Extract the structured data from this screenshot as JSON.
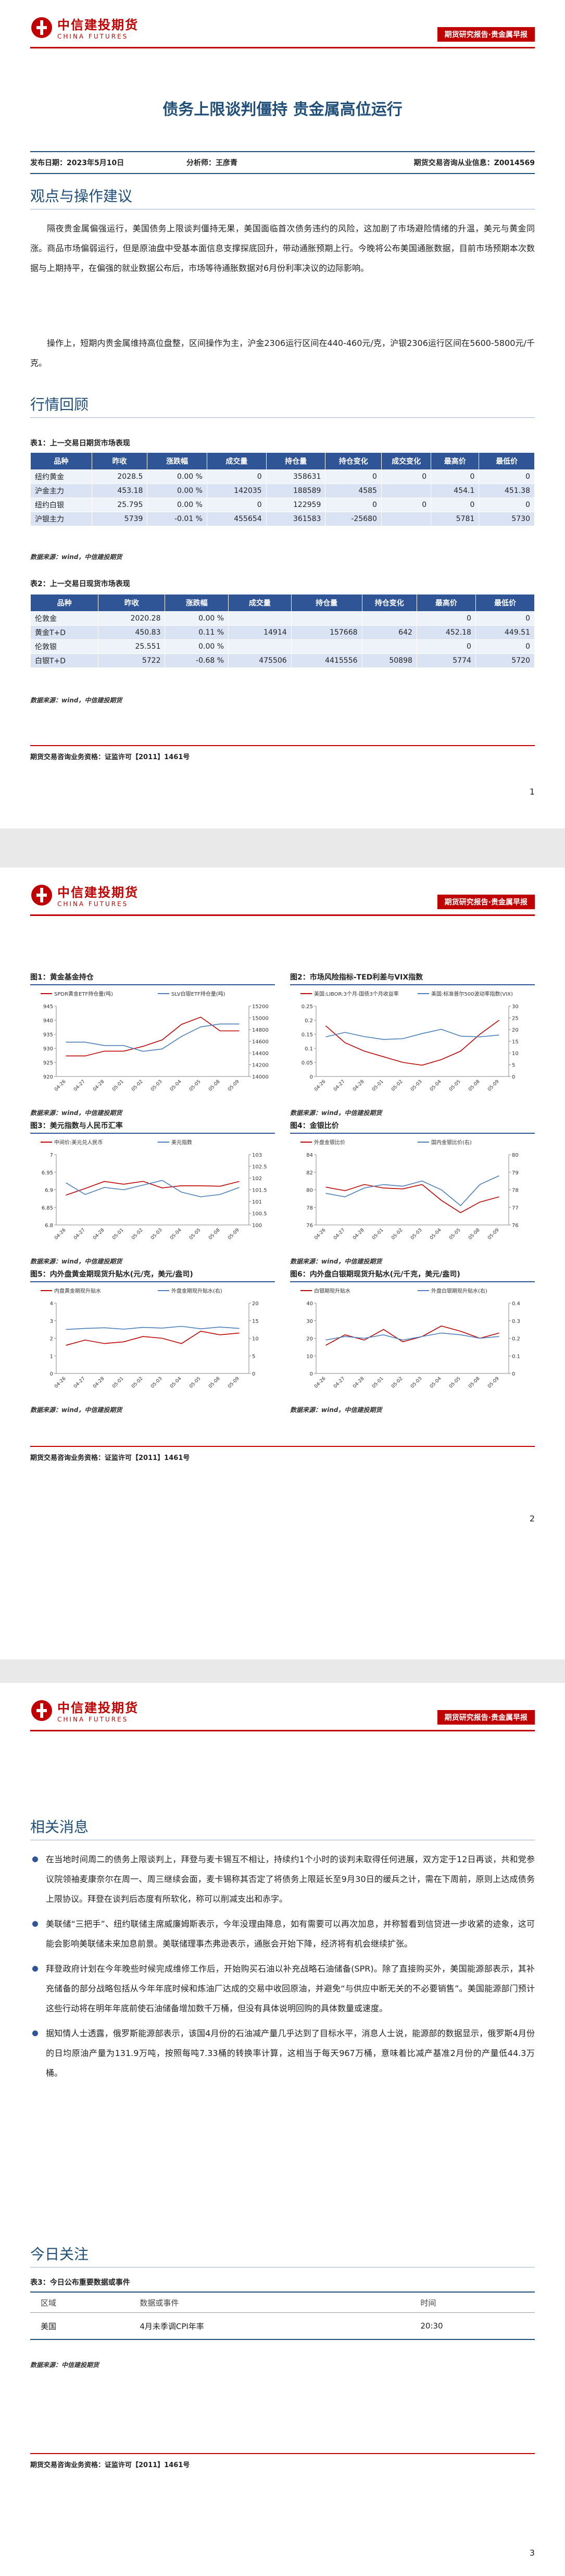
{
  "header": {
    "company": "中信建投期货",
    "company_en": "CHINA FUTURES",
    "report_type": "期货研究报告·贵金属早报"
  },
  "footer": {
    "license": "期货交易咨询业务资格：证监许可【2011】1461号"
  },
  "page_numbers": [
    "1",
    "2",
    "3"
  ],
  "title": "债务上限谈判僵持 贵金属高位运行",
  "info": {
    "date": "发布日期：2023年5月10日",
    "analyst": "分析师：王彦青",
    "license": "期货交易咨询从业信息：Z0014569"
  },
  "views": {
    "heading": "观点与操作建议",
    "paragraphs": [
      "隔夜贵金属偏强运行，美国债务上限谈判僵持无果，美国面临首次债务违约的风险，这加剧了市场避险情绪的升温，美元与黄金同涨。商品市场偏弱运行，但是原油盘中受基本面信息支撑探底回升，带动通胀预期上行。今晚将公布美国通胀数据，目前市场预期本次数据与上期持平，在偏强的就业数据公布后，市场等待通胀数据对6月份利率决议的边际影响。",
      "操作上，短期内贵金属维持高位盘整，区间操作为主，沪金2306运行区间在440-460元/克，沪银2306运行区间在5600-5800元/千克。"
    ]
  },
  "review": {
    "heading": "行情回顾",
    "source": "数据来源：wind，中信建投期货",
    "tables": [
      {
        "caption": "表1：上一交易日期货市场表现",
        "columns": [
          "品种",
          "昨收",
          "涨跌幅",
          "成交量",
          "持仓量",
          "持仓变化",
          "成交变化",
          "最高价",
          "最低价"
        ],
        "rows": [
          [
            "纽约黄金",
            "2028.5",
            "0.00 %",
            "0",
            "358631",
            "0",
            "0",
            "0",
            "0"
          ],
          [
            "沪金主力",
            "453.18",
            "0.00 %",
            "142035",
            "188589",
            "4585",
            null,
            "454.1",
            "451.38"
          ],
          [
            "纽约白银",
            "25.795",
            "0.00 %",
            "0",
            "122959",
            "0",
            "0",
            "0",
            "0"
          ],
          [
            "沪银主力",
            "5739",
            "-0.01 %",
            "455654",
            "361583",
            "-25680",
            null,
            "5781",
            "5730"
          ]
        ]
      },
      {
        "caption": "表2：上一交易日现货市场表现",
        "columns": [
          "品种",
          "昨收",
          "涨跌幅",
          "成交量",
          "持仓量",
          "持仓变化",
          "最高价",
          "最低价"
        ],
        "rows": [
          [
            "伦敦金",
            "2020.28",
            "0.00 %",
            null,
            null,
            null,
            "0",
            "0"
          ],
          [
            "黄金T+D",
            "450.83",
            "0.11 %",
            "14914",
            "157668",
            "642",
            "452.18",
            "449.51"
          ],
          [
            "伦敦银",
            "25.551",
            "0.00 %",
            null,
            null,
            null,
            "0",
            "0"
          ],
          [
            "白银T+D",
            "5722",
            "-0.68 %",
            "475506",
            "4415556",
            "50898",
            "5774",
            "5720"
          ]
        ]
      }
    ]
  },
  "chart_source": "数据来源：wind，中信建投期货",
  "chart_data": [
    {
      "type": "line",
      "title": "图1：黄金基金持仓",
      "categories": [
        "04-26",
        "04-27",
        "04-28",
        "05-01",
        "05-02",
        "05-03",
        "05-04",
        "05-05",
        "05-08",
        "05-09"
      ],
      "ylim": [
        920,
        945
      ],
      "yticks": [
        920,
        925,
        930,
        935,
        940,
        945
      ],
      "y2lim": [
        14000,
        15200
      ],
      "y2ticks": [
        14000,
        14200,
        14400,
        14600,
        14800,
        15000,
        15200
      ],
      "series": [
        {
          "name": "SPDR黄金ETF持仓量(吨)",
          "color": "#c00000",
          "values": [
            927.3,
            927.3,
            929.0,
            929.0,
            930.7,
            933.0,
            938.5,
            941.1,
            936.2,
            936.2
          ]
        },
        {
          "name": "SLV白银ETF持仓量(吨)",
          "color": "#4a7ebb",
          "axis": "y2",
          "values": [
            14585,
            14585,
            14527,
            14527,
            14428,
            14469,
            14683,
            14846,
            14895,
            14895
          ]
        }
      ]
    },
    {
      "type": "line",
      "title": "图2：市场风险指标-TED利差与VIX指数",
      "categories": [
        "04-26",
        "04-27",
        "04-28",
        "05-01",
        "05-02",
        "05-03",
        "05-04",
        "05-05",
        "05-08",
        "05-09"
      ],
      "ylim": [
        0,
        0.25
      ],
      "yticks": [
        0,
        0.05,
        0.1,
        0.15,
        0.2,
        0.25
      ],
      "y2lim": [
        0,
        30
      ],
      "y2ticks": [
        0,
        5,
        10,
        15,
        20,
        25,
        30
      ],
      "series": [
        {
          "name": "美国:LIBOR:3个月-国债3个月收益率",
          "color": "#c00000",
          "values": [
            0.18,
            0.12,
            0.09,
            0.07,
            0.05,
            0.04,
            0.06,
            0.09,
            0.15,
            0.2
          ]
        },
        {
          "name": "美国:标准普尔500波动率指数(VIX)",
          "color": "#4a7ebb",
          "axis": "y2",
          "values": [
            16.9,
            18.8,
            17,
            15.8,
            16.1,
            18.3,
            20.1,
            17.2,
            16.9,
            17.7
          ]
        }
      ]
    },
    {
      "type": "line",
      "title": "图3：美元指数与人民币汇率",
      "categories": [
        "04-26",
        "04-27",
        "04-28",
        "05-01",
        "05-02",
        "05-03",
        "05-04",
        "05-05",
        "05-08",
        "05-09"
      ],
      "ylim": [
        6.8,
        7
      ],
      "yticks": [
        6.8,
        6.85,
        6.9,
        6.95,
        7
      ],
      "y2lim": [
        100,
        103
      ],
      "y2ticks": [
        100,
        100.5,
        101,
        101.5,
        102,
        102.5,
        103
      ],
      "series": [
        {
          "name": "中间价:美元兑人民币",
          "color": "#c00000",
          "values": [
            6.8847,
            6.9037,
            6.9237,
            6.9158,
            6.924,
            6.9054,
            6.9115,
            6.9114,
            6.9101,
            6.9237
          ]
        },
        {
          "name": "美元指数",
          "color": "#4a7ebb",
          "axis": "y2",
          "values": [
            101.8,
            101.3,
            101.6,
            101.5,
            101.7,
            101.9,
            101.4,
            101.2,
            101.3,
            101.6
          ]
        }
      ]
    },
    {
      "type": "line",
      "title": "图4：金银比价",
      "categories": [
        "04-26",
        "04-27",
        "04-28",
        "05-01",
        "05-02",
        "05-03",
        "05-04",
        "05-05",
        "05-08",
        "05-09"
      ],
      "ylim": [
        76,
        84
      ],
      "yticks": [
        76,
        78,
        80,
        82,
        84
      ],
      "y2lim": [
        76,
        80
      ],
      "y2ticks": [
        76,
        77,
        78,
        79,
        80
      ],
      "series": [
        {
          "name": "外盘金银比价",
          "color": "#c00000",
          "values": [
            80.3,
            79.9,
            80.6,
            80.2,
            80.1,
            80.6,
            78.8,
            77.4,
            78.6,
            79.2
          ]
        },
        {
          "name": "国内金银比价(右)",
          "color": "#4a7ebb",
          "axis": "y2",
          "values": [
            77.8,
            77.6,
            78.1,
            78.3,
            78.2,
            78.5,
            78,
            77.1,
            78.3,
            78.8
          ]
        }
      ]
    },
    {
      "type": "line",
      "title": "图5：内外盘黄金期现货升贴水(元/克，美元/盎司)",
      "categories": [
        "04-26",
        "04-27",
        "04-28",
        "05-01",
        "05-02",
        "05-03",
        "05-04",
        "05-05",
        "05-08",
        "05-09"
      ],
      "ylim": [
        0,
        4
      ],
      "yticks": [
        0,
        1,
        2,
        3,
        4
      ],
      "y2lim": [
        0,
        20
      ],
      "y2ticks": [
        0,
        5,
        10,
        15,
        20
      ],
      "series": [
        {
          "name": "内盘黄金期现升贴水",
          "color": "#c00000",
          "values": [
            1.6,
            1.9,
            1.7,
            1.8,
            2.1,
            2,
            1.7,
            2.4,
            2.2,
            2.3
          ]
        },
        {
          "name": "外盘金期现升贴水(右)",
          "color": "#4a7ebb",
          "axis": "y2",
          "values": [
            12.5,
            12.8,
            13,
            12.6,
            13.1,
            12.9,
            13.4,
            12.7,
            13.2,
            12.8
          ]
        }
      ]
    },
    {
      "type": "line",
      "title": "图6：内外盘白银期现货升贴水(元/千克，美元/盎司)",
      "categories": [
        "04-26",
        "04-27",
        "04-28",
        "05-01",
        "05-02",
        "05-03",
        "05-04",
        "05-05",
        "05-08",
        "05-09"
      ],
      "ylim": [
        0,
        40
      ],
      "yticks": [
        0,
        10,
        20,
        30,
        40
      ],
      "y2lim": [
        0,
        0.4
      ],
      "y2ticks": [
        0,
        0.1,
        0.2,
        0.3,
        0.4
      ],
      "series": [
        {
          "name": "白银期现升贴水",
          "color": "#c00000",
          "values": [
            16,
            22,
            19,
            25,
            18,
            21,
            27,
            24,
            20,
            23
          ]
        },
        {
          "name": "外盘白银期现升贴水(右)",
          "color": "#4a7ebb",
          "axis": "y2",
          "values": [
            0.19,
            0.21,
            0.2,
            0.22,
            0.19,
            0.21,
            0.23,
            0.22,
            0.2,
            0.21
          ]
        }
      ]
    }
  ],
  "news": {
    "heading": "相关消息",
    "items": [
      "在当地时间周二的债务上限谈判上，拜登与麦卡锡互不相让，持续约1个小时的谈判未取得任何进展，双方定于12日再谈，共和党参议院领袖麦康奈尔在周一、周三继续会面，麦卡锡称其否定了将债务上限延长至9月30日的缓兵之计，需在下周前，原则上达成债务上限协议。拜登在谈判后态度有所软化，称可以削减支出和赤字。",
      "美联储“三把手”、纽约联储主席威廉姆斯表示，今年没理由降息，如有需要可以再次加息，并称暂看到信贷进一步收紧的迹象，这可能会影响美联储未来加息前景。美联储理事杰弗逊表示，通胀会开始下降，经济将有机会继续扩张。",
      "拜登政府计划在今年晚些时候完成维修工作后，开始购买石油以补充战略石油储备(SPR)。除了直接购买外，美国能源部表示，其补充储备的部分战略包括从今年年底时候和炼油厂达成的交易中收回原油，并避免“与供应中断无关的不必要销售”。美国能源部门预计这些行动将在明年年底前使石油储备增加数千万桶，但没有具体说明回购的具体数量或速度。",
      "据知情人士透露，俄罗斯能源部表示，该国4月份的石油减产量几乎达到了目标水平，消息人士说，能源部的数据显示，俄罗斯4月份的日均原油产量为131.9万吨，按照每吨7.33桶的转换率计算，这相当于每天967万桶，意味着比减产基准2月份的产量低44.3万桶。"
    ]
  },
  "focus": {
    "heading": "今日关注",
    "source": "数据来源：中信建投期货",
    "table": {
      "caption": "表3：今日公布重要数据或事件",
      "columns": [
        "区域",
        "数据或事件",
        "时间"
      ],
      "rows": [
        [
          "美国",
          "4月未季调CPI年率",
          "20:30"
        ]
      ]
    }
  }
}
